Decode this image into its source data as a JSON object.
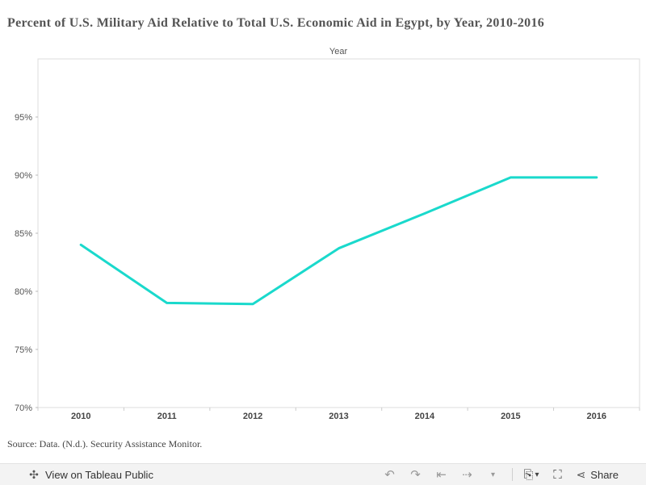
{
  "title": "Percent of U.S. Military Aid Relative to Total U.S. Economic Aid in Egypt, by Year, 2010-2016",
  "source": "Source: Data. (N.d.). Security Assistance Monitor.",
  "chart_data": {
    "type": "line",
    "axis_top_label": "Year",
    "categories": [
      "2010",
      "2011",
      "2012",
      "2013",
      "2014",
      "2015",
      "2016"
    ],
    "series": [
      {
        "values": [
          84.0,
          79.0,
          78.9,
          83.7,
          86.7,
          89.8,
          89.8
        ],
        "color": "#1ad9cc"
      }
    ],
    "ylim": [
      70,
      100
    ],
    "yticks": [
      70,
      75,
      80,
      85,
      90,
      95
    ],
    "ytick_labels": [
      "70%",
      "75%",
      "80%",
      "85%",
      "90%",
      "95%"
    ],
    "grid": false,
    "legend": "none"
  },
  "toolbar": {
    "view_label": "View on Tableau Public",
    "share_label": "Share",
    "icons": [
      "tableau-logo-icon",
      "undo-icon",
      "redo-icon",
      "revert-icon",
      "refresh-icon",
      "dropdown-caret-icon",
      "download-icon",
      "fullscreen-icon",
      "share-icon"
    ]
  }
}
